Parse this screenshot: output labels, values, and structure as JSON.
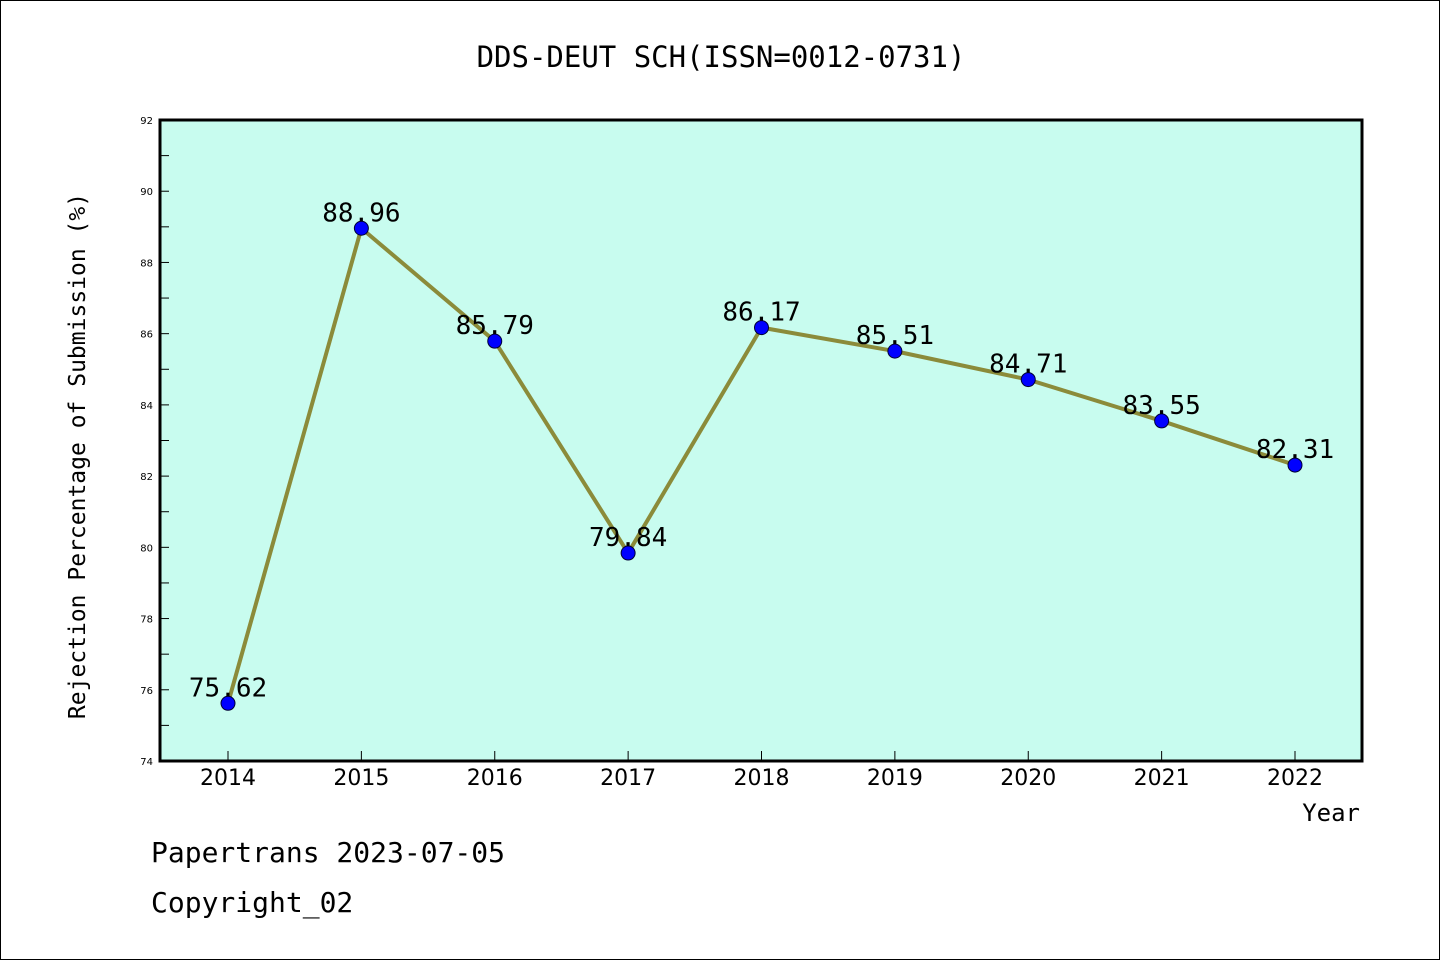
{
  "colors": {
    "plot_background": "#c8fcef",
    "line": "#8b8b3a",
    "marker": "#0000ff",
    "axis": "#000000"
  },
  "footer": {
    "line1": "Papertrans 2023-07-05",
    "line2": "Copyright_02"
  },
  "chart_data": {
    "type": "line",
    "title": "DDS-DEUT SCH(ISSN=0012-0731)",
    "xlabel": "Year",
    "ylabel": "Rejection Percentage of Submission (%)",
    "categories": [
      "2014",
      "2015",
      "2016",
      "2017",
      "2018",
      "2019",
      "2020",
      "2021",
      "2022"
    ],
    "series": [
      {
        "values": [
          75.62,
          88.96,
          85.79,
          79.84,
          86.17,
          85.51,
          84.71,
          83.55,
          82.31
        ]
      }
    ],
    "data_labels": [
      "75.62",
      "88.96",
      "85.79",
      "79.84",
      "86.17",
      "85.51",
      "84.71",
      "83.55",
      "82.31"
    ],
    "ylim": [
      74,
      92
    ],
    "yticks": [
      74,
      76,
      78,
      80,
      82,
      84,
      86,
      88,
      90,
      92
    ],
    "grid": false,
    "legend": "none"
  }
}
